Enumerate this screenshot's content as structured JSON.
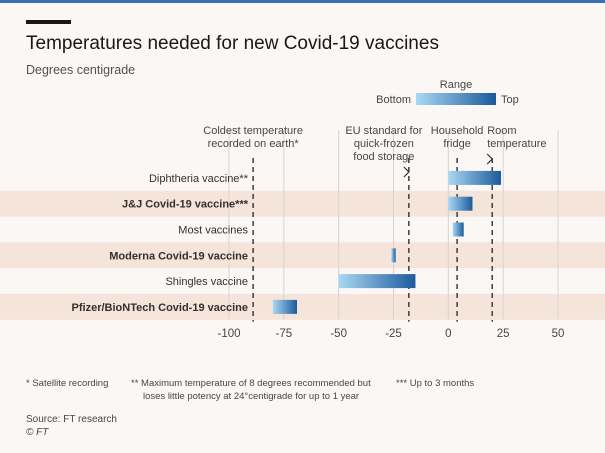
{
  "title": "Temperatures needed for new Covid-19 vaccines",
  "subtitle": "Degrees centigrade",
  "legend": {
    "title": "Range",
    "bottom_label": "Bottom",
    "top_label": "Top",
    "color_bottom": "#a9d8f2",
    "color_top": "#1b5a9c"
  },
  "colors": {
    "band": "#f5e4da",
    "bar_light": "#a9d8f2",
    "bar_dark": "#1b5a9c",
    "reference_line": "#33302e",
    "grid": "#d9d3cf"
  },
  "chart_data": {
    "type": "bar",
    "orientation": "horizontal-range",
    "xlim": [
      -100,
      50
    ],
    "x_ticks": [
      -100,
      -75,
      -50,
      -25,
      0,
      25,
      50
    ],
    "categories": [
      "Diphtheria vaccine**",
      "J&J Covid-19 vaccine***",
      "Most vaccines",
      "Moderna Covid-19 vaccine",
      "Shingles vaccine",
      "Pfizer/BioNTech Covid-19 vaccine"
    ],
    "bold_categories": [
      false,
      true,
      false,
      true,
      false,
      true
    ],
    "banded_rows": [
      false,
      true,
      false,
      true,
      false,
      true
    ],
    "ranges": [
      {
        "bottom": 0,
        "top": 24
      },
      {
        "bottom": 0,
        "top": 11
      },
      {
        "bottom": 2,
        "top": 7
      },
      {
        "bottom": -26,
        "top": -24
      },
      {
        "bottom": -50,
        "top": -15
      },
      {
        "bottom": -80,
        "top": -69
      }
    ],
    "reference_lines": [
      {
        "value": -89,
        "label": "Coldest temperature recorded on earth*",
        "lines": [
          "Coldest temperature",
          "recorded on earth*"
        ]
      },
      {
        "value": -18,
        "label": "EU standard for quick-frozen food storage",
        "lines": [
          "EU standard for",
          "quick-frozen",
          "food storage"
        ]
      },
      {
        "value": 4,
        "label": "Household fridge",
        "lines": [
          "Household",
          "fridge"
        ]
      },
      {
        "value": 20,
        "label": "Room temperature",
        "lines": [
          "Room",
          "temperature"
        ]
      }
    ]
  },
  "footnotes": {
    "satellite": "* Satellite recording",
    "diphtheria_line1": "** Maximum temperature of 8 degrees recommended but",
    "diphtheria_line2": "loses little potency at 24°centigrade for up to 1 year",
    "jj": "*** Up to 3 months"
  },
  "source": "Source: FT research",
  "copyright": "© FT"
}
